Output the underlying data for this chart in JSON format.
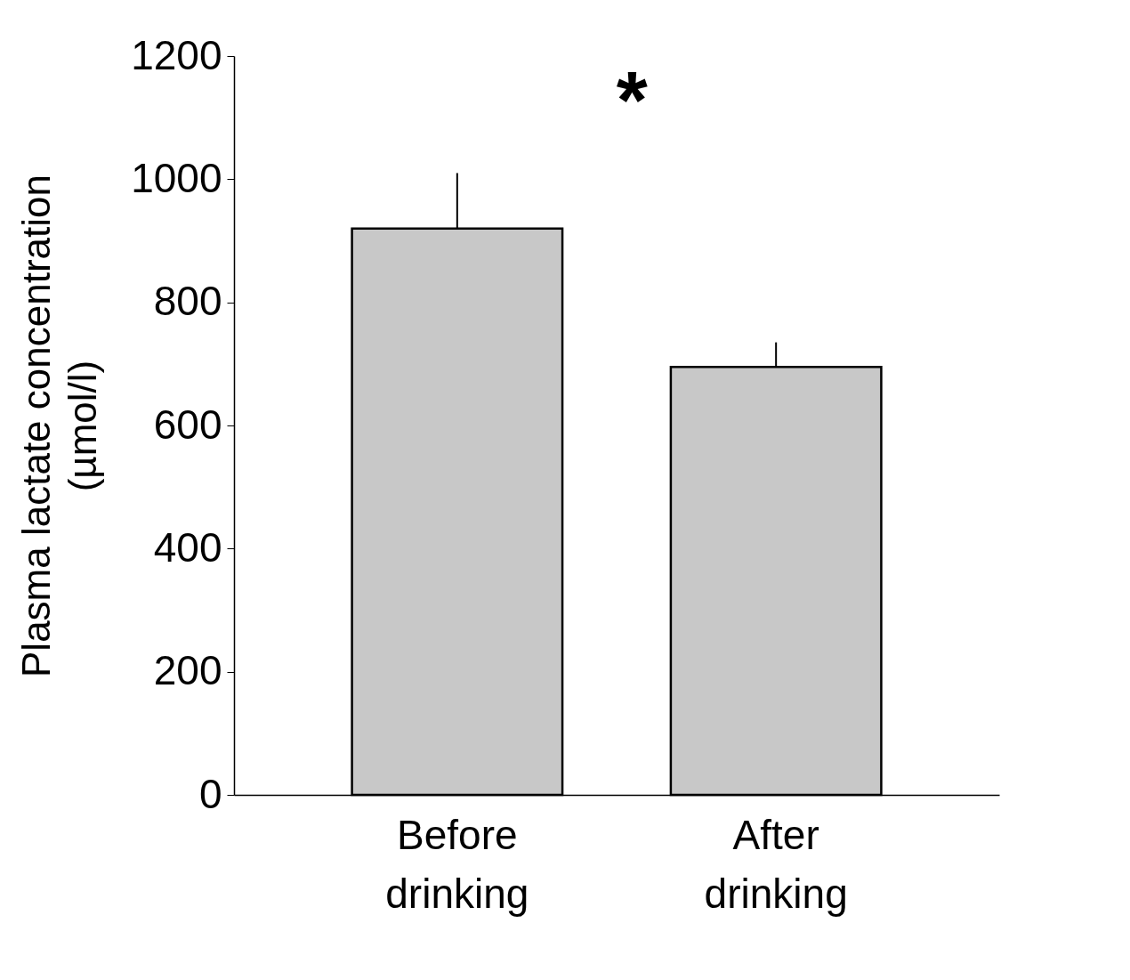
{
  "chart_data": {
    "type": "bar",
    "ylabel": "Plasma lactate concentration\n(µmol/l)",
    "categories": [
      "Before drinking",
      "After drinking"
    ],
    "values": [
      920,
      695
    ],
    "errors": [
      [
        920,
        1010
      ],
      [
        695,
        735
      ]
    ],
    "color": "#c8c8c8",
    "ylim": [
      0,
      1200
    ],
    "yticks": [
      0,
      200,
      400,
      600,
      800,
      1000,
      1200
    ],
    "grid": false,
    "annotations": [
      "*"
    ]
  }
}
